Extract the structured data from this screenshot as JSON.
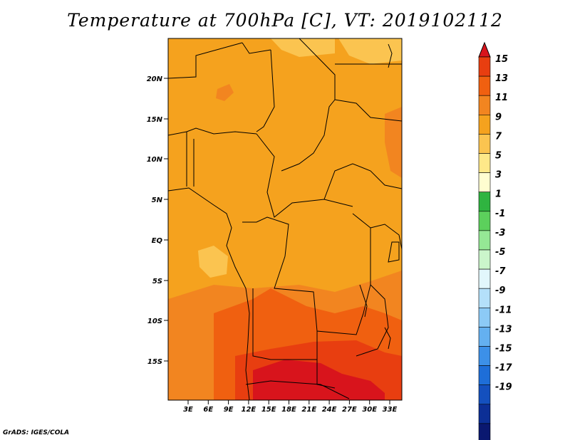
{
  "title": "Temperature at 700hPa [C], VT: 2019102112",
  "credit": "GrADS: IGES/COLA",
  "map": {
    "lat_labels": [
      "20N",
      "15N",
      "10N",
      "5N",
      "EQ",
      "5S",
      "10S",
      "15S"
    ],
    "lon_labels": [
      "3E",
      "6E",
      "9E",
      "12E",
      "15E",
      "18E",
      "21E",
      "24E",
      "27E",
      "30E",
      "33E"
    ]
  },
  "colorbar": {
    "labels": [
      "15",
      "13",
      "11",
      "9",
      "7",
      "5",
      "3",
      "1",
      "-1",
      "-3",
      "-5",
      "-7",
      "-9",
      "-11",
      "-13",
      "-15",
      "-17",
      "-19"
    ],
    "colors": [
      "#d8141c",
      "#e83e10",
      "#f06010",
      "#f28520",
      "#f5a21e",
      "#fbc450",
      "#fee889",
      "#fffdd0",
      "#2fb440",
      "#5cd05c",
      "#95e895",
      "#cbf5cb",
      "#e2f7fc",
      "#b4e0fa",
      "#8ccaf6",
      "#64b0f0",
      "#3c90e8",
      "#1e6ed8",
      "#1450be",
      "#0c2f96",
      "#0a1870",
      "#e6e6fa"
    ]
  },
  "field_colors": {
    "t7": "#fbc450",
    "t9": "#f5a21e",
    "t11": "#f28520",
    "t13": "#f06010",
    "t15": "#e83e10",
    "t17": "#d8141c"
  }
}
